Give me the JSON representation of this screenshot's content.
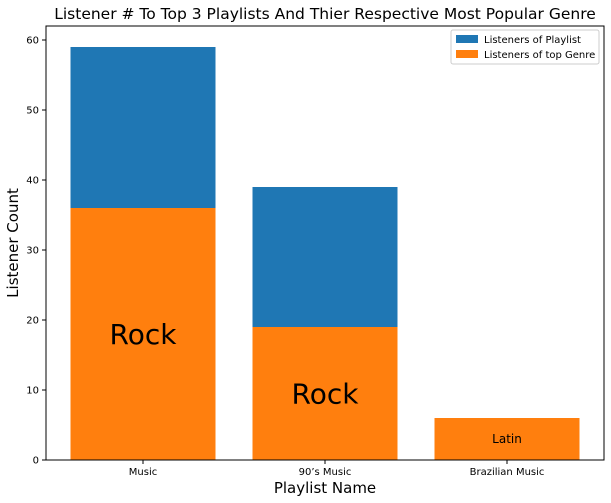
{
  "chart_data": {
    "type": "bar",
    "stacked": false,
    "title": "Listener # To Top 3 Playlists And Thier Respective Most Popular Genre",
    "xlabel": "Playlist Name",
    "ylabel": "Listener Count",
    "categories": [
      "Music",
      "90’s Music",
      "Brazilian Music"
    ],
    "ylim": [
      0,
      62
    ],
    "yticks": [
      0,
      10,
      20,
      30,
      40,
      50,
      60
    ],
    "grid": false,
    "legend_position": "top-right",
    "series": [
      {
        "name": "Listeners of Playlist",
        "color": "#1f77b4",
        "values": [
          59,
          39,
          6
        ]
      },
      {
        "name": "Listeners of top Genre",
        "color": "#ff7f0e",
        "values": [
          36,
          19,
          6
        ]
      }
    ],
    "bar_labels": [
      {
        "category": "Music",
        "text": "Rock",
        "size": "large"
      },
      {
        "category": "90’s Music",
        "text": "Rock",
        "size": "large"
      },
      {
        "category": "Brazilian Music",
        "text": "Latin",
        "size": "small"
      }
    ]
  }
}
